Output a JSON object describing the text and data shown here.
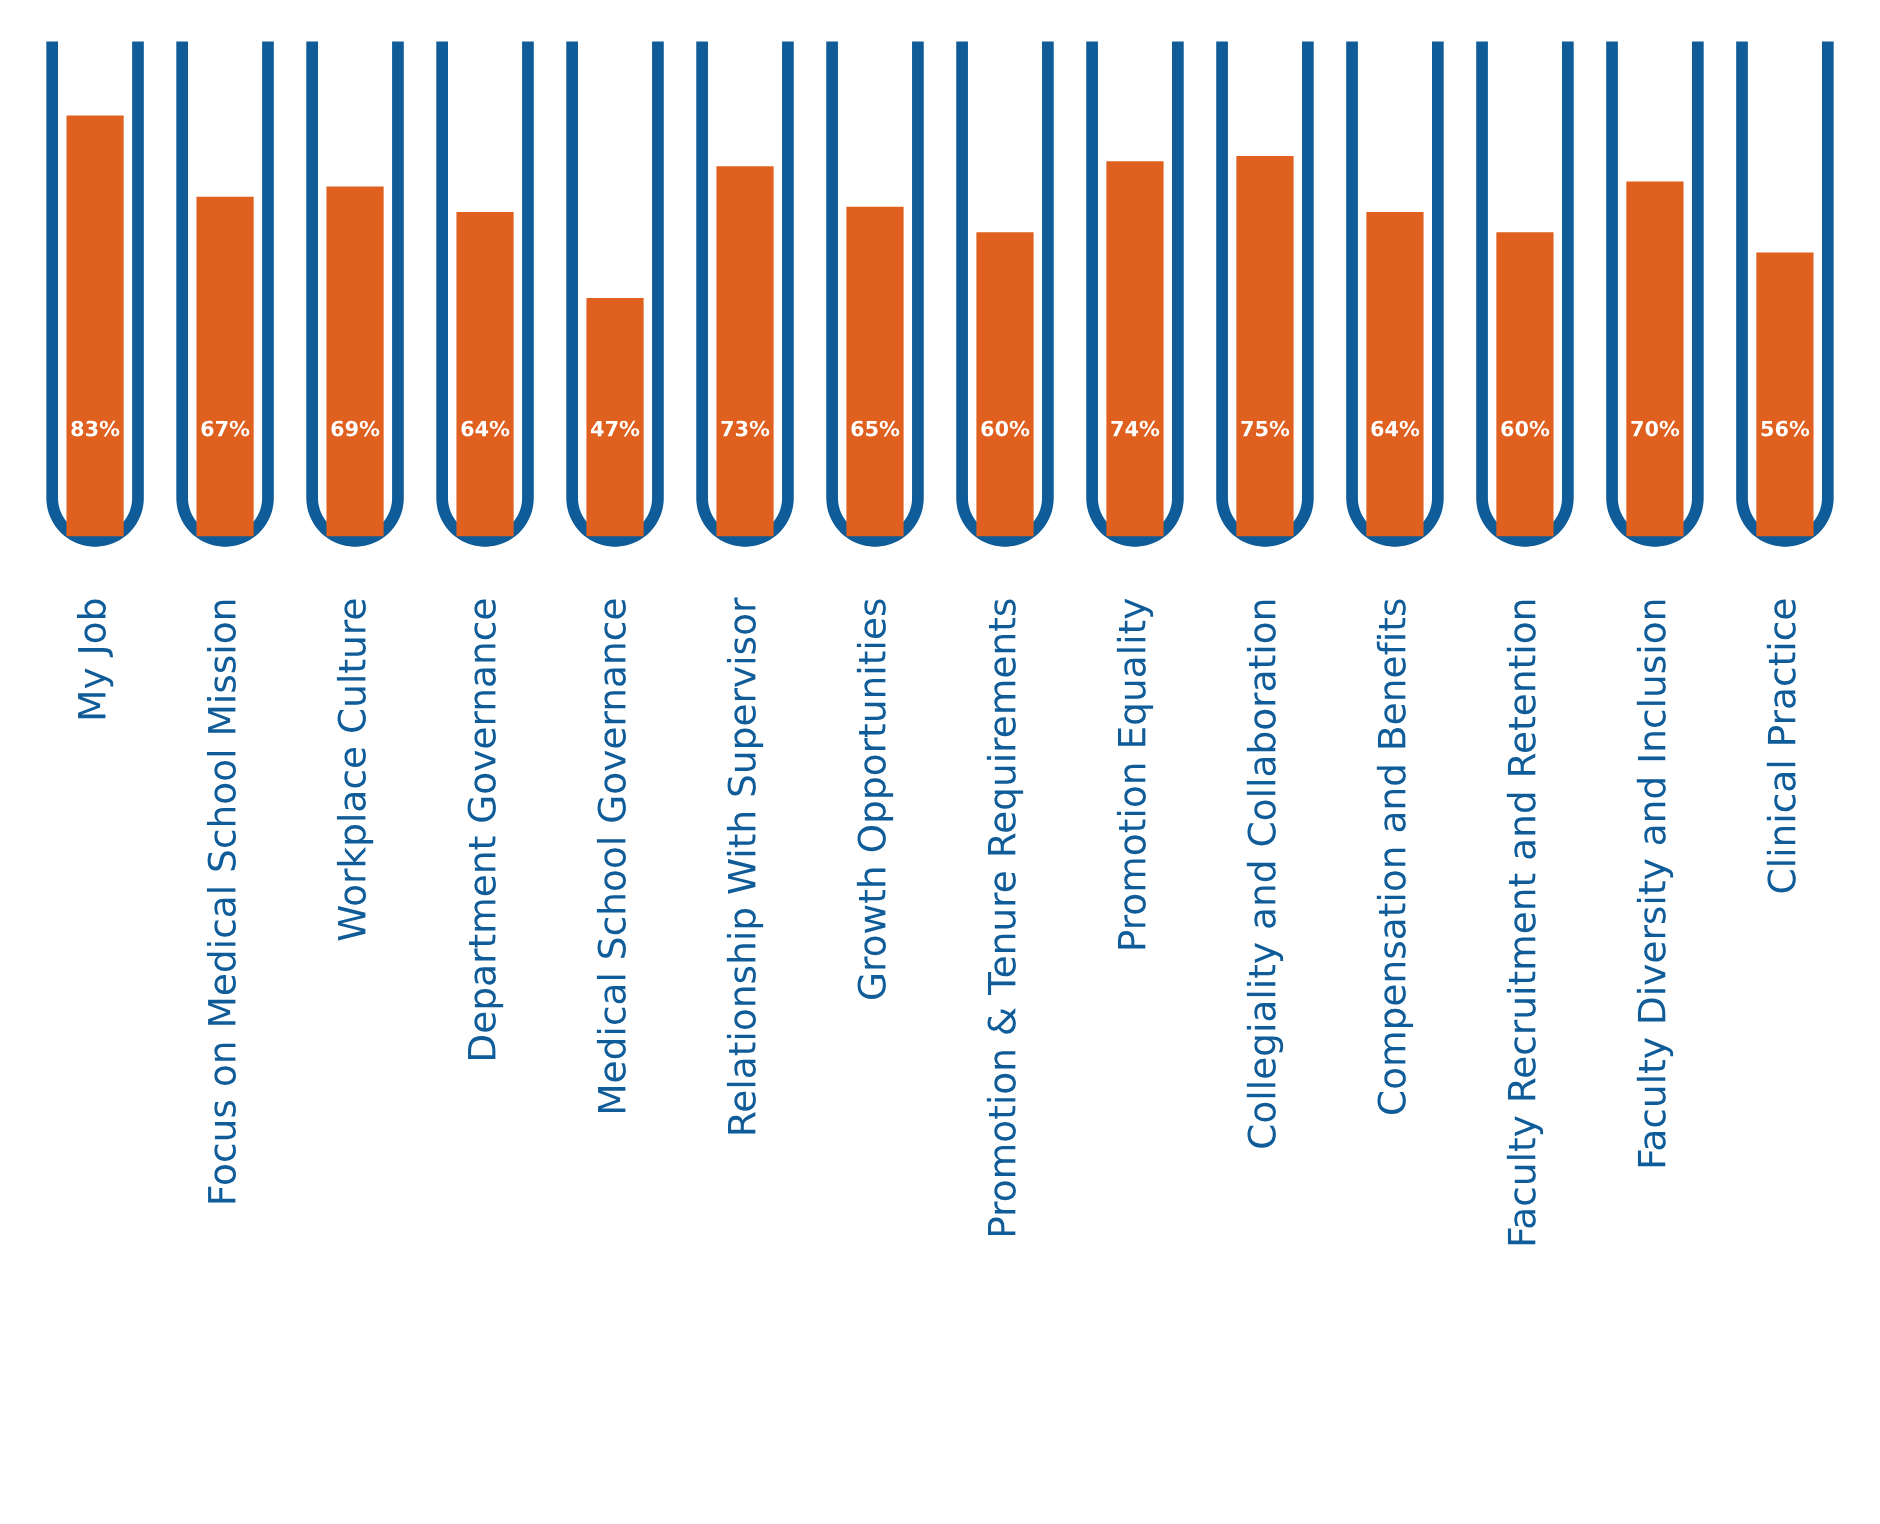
{
  "chart_data": {
    "type": "bar",
    "categories": [
      "My Job",
      "Focus on Medical School Mission",
      "Workplace Culture",
      "Department Governance",
      "Medical School Governance",
      "Relationship With Supervisor",
      "Growth Opportunities",
      "Promotion & Tenure Requirements",
      "Promotion Equality",
      "Collegiality and Collaboration",
      "Compensation and Benefits",
      "Faculty Recruitment and Retention",
      "Faculty Diversity and Inclusion",
      "Clinical Practice"
    ],
    "values": [
      83,
      67,
      69,
      64,
      47,
      73,
      65,
      60,
      74,
      75,
      64,
      60,
      70,
      56
    ],
    "value_labels": [
      "83%",
      "67%",
      "69%",
      "64%",
      "47%",
      "73%",
      "65%",
      "60%",
      "74%",
      "75%",
      "64%",
      "60%",
      "70%",
      "56%"
    ],
    "color": "#e0601f",
    "tick_labels": "x",
    "grid": false,
    "legend": false
  }
}
